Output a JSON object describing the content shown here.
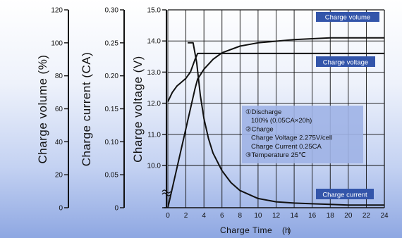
{
  "chart_data": {
    "type": "line",
    "xlabel": "Charge Time (h)",
    "xlabel_parts": [
      "Charge Time",
      "h",
      "( )"
    ],
    "x_ticks": [
      "0",
      "2",
      "4",
      "6",
      "8",
      "10",
      "12",
      "14",
      "16",
      "18",
      "20",
      "22",
      "24"
    ],
    "xlim": [
      0,
      24
    ],
    "axes": [
      {
        "name": "charge-volume",
        "title": "Charge volume",
        "unit": "(%)",
        "ticks": [
          "0",
          "20",
          "40",
          "60",
          "80",
          "100",
          "120"
        ],
        "ylim": [
          0,
          120
        ]
      },
      {
        "name": "charge-current",
        "title": "Charge current",
        "unit": "(CA)",
        "ticks": [
          "0",
          "0.05",
          "0.10",
          "0.15",
          "0.20",
          "0.25",
          "0.30"
        ],
        "ylim": [
          0,
          0.3
        ]
      },
      {
        "name": "charge-voltage",
        "title": "Charge voltage",
        "unit": "(V)",
        "ticks": [
          "10.0",
          "11.0",
          "12.0",
          "13.0",
          "14.0",
          "15.0"
        ],
        "ylim": [
          10.0,
          15.0
        ]
      }
    ],
    "grid": true,
    "series": [
      {
        "name": "Charge volume",
        "axis": "charge-volume",
        "x": [
          0,
          1,
          2,
          3,
          3.3,
          4,
          5,
          6,
          8,
          10,
          12,
          14,
          16,
          18,
          20,
          22,
          24
        ],
        "y": [
          0,
          24,
          48,
          72,
          78,
          84,
          90,
          94,
          98,
          100,
          101,
          102,
          102.5,
          103,
          103,
          103,
          103
        ]
      },
      {
        "name": "Charge voltage",
        "axis": "charge-voltage",
        "x": [
          0,
          0.5,
          1,
          2,
          2.5,
          3,
          3.3,
          4,
          8,
          12,
          16,
          20,
          24
        ],
        "y": [
          12.05,
          12.35,
          12.55,
          12.8,
          13.0,
          13.4,
          13.6,
          13.6,
          13.6,
          13.6,
          13.6,
          13.6,
          13.6
        ]
      },
      {
        "name": "Charge current",
        "axis": "charge-current",
        "x": [
          0,
          2.8,
          3.2,
          3.6,
          4,
          4.5,
          5,
          6,
          7,
          8,
          10,
          12,
          14,
          16,
          18,
          20,
          24
        ],
        "y": [
          0.25,
          0.25,
          0.22,
          0.17,
          0.135,
          0.105,
          0.083,
          0.056,
          0.038,
          0.026,
          0.014,
          0.009,
          0.007,
          0.006,
          0.005,
          0.004,
          0.004
        ]
      }
    ],
    "series_labels": [
      {
        "text": "Charge volume"
      },
      {
        "text": "Charge voltage"
      },
      {
        "text": "Charge current"
      }
    ],
    "conditions": [
      "①Discharge",
      "100% (0.05CA×20h)",
      "②Charge",
      "Charge Voltage  2.275V/cell",
      "Charge Current 0.25CA",
      "③Temperature 25℃"
    ],
    "colors": {
      "line": "#111111",
      "grid": "#111111",
      "label_box": "#3355aa",
      "conditions_box": "#9fb3e6"
    }
  }
}
